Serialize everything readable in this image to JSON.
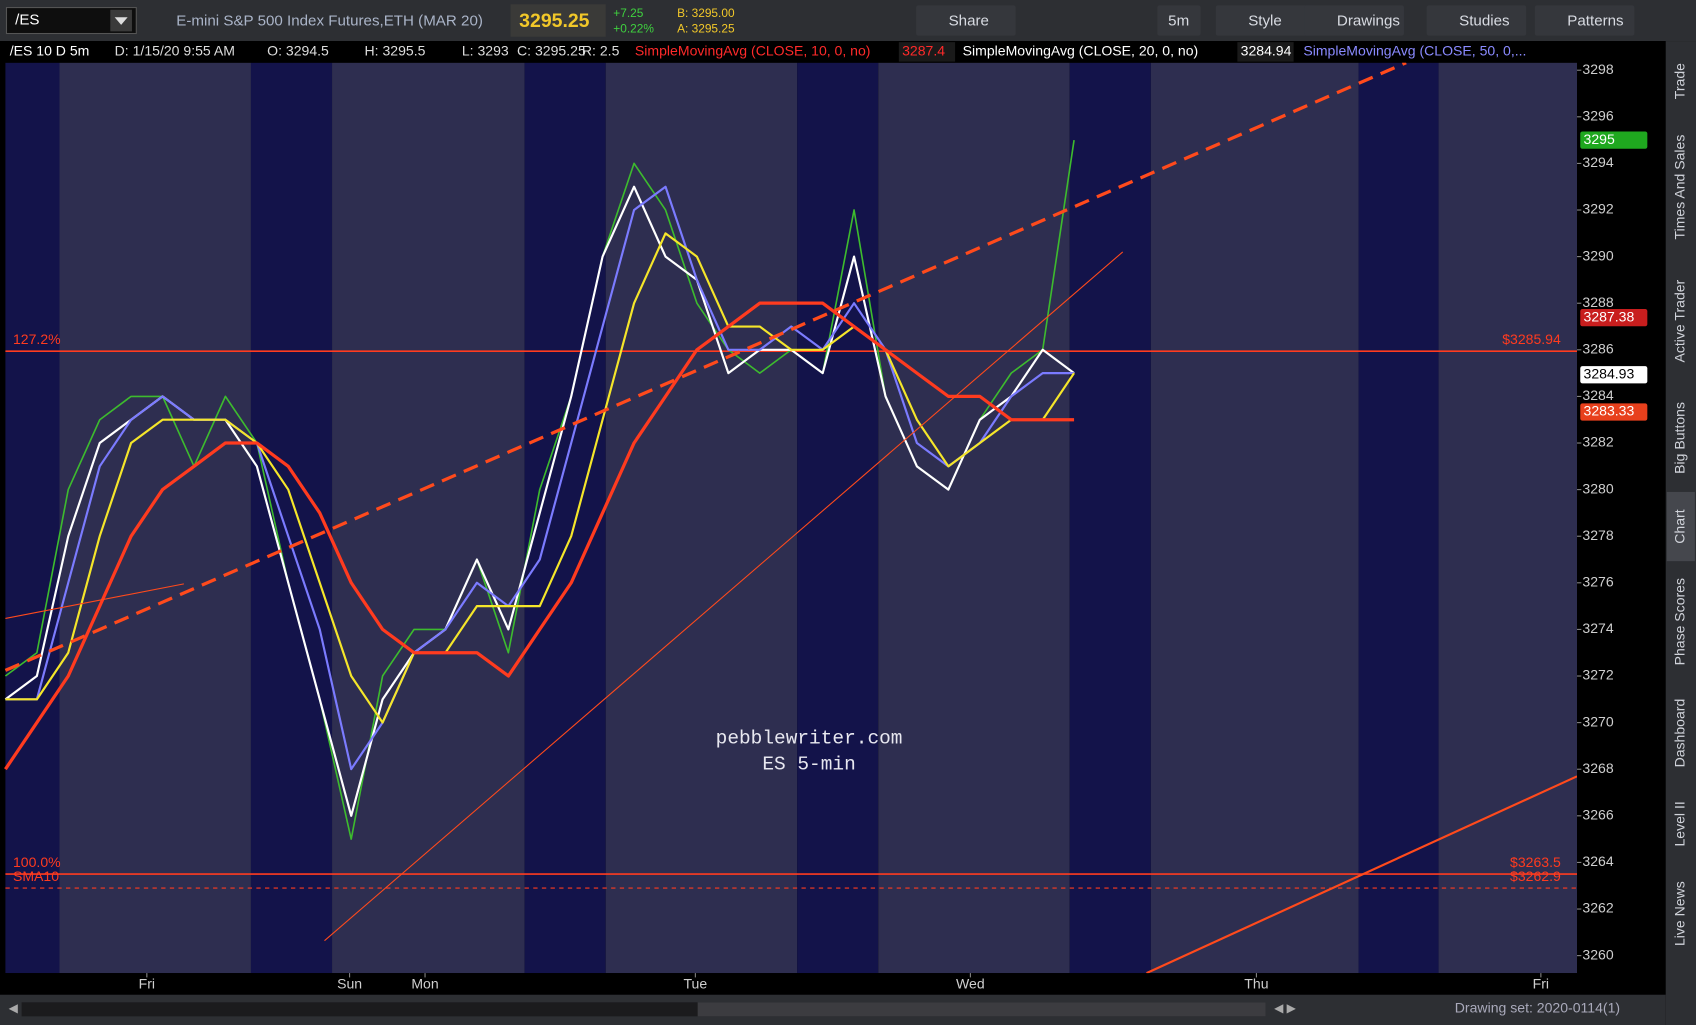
{
  "toolbar": {
    "symbol": "/ES",
    "description": "E-mini S&P 500 Index Futures,ETH (MAR 20)",
    "last": "3295.25",
    "change": "+7.25",
    "change_pct": "+0.22%",
    "bid": "B: 3295.00",
    "ask": "A: 3295.25",
    "buttons": [
      "Share",
      "5m",
      "Style",
      "Drawings",
      "Studies",
      "Patterns"
    ]
  },
  "header": {
    "chart_id": "/ES 10 D 5m",
    "date": "D: 1/15/20 9:55 AM",
    "open": "O: 3294.5",
    "high": "H: 3295.5",
    "low": "L: 3293",
    "close": "C: 3295.25",
    "range": "R: 2.5",
    "studies": [
      {
        "label": "SimpleMovingAvg (CLOSE, 10, 0, no)",
        "value": "3287.4",
        "color": "#ff2a2a"
      },
      {
        "label": "SimpleMovingAvg (CLOSE, 20, 0, no)",
        "value": "3284.94",
        "color": "#ffffff"
      },
      {
        "label": "SimpleMovingAvg (CLOSE, 50, 0,...",
        "color": "#8a8aff"
      }
    ]
  },
  "chart_data": {
    "type": "line",
    "x": [
      0,
      2,
      4,
      6,
      8,
      10,
      12,
      14,
      16,
      18,
      20,
      22,
      24,
      26,
      28,
      30,
      32,
      34,
      36,
      38,
      40,
      42,
      44,
      46,
      48,
      50,
      52,
      54,
      56,
      58,
      60,
      62,
      64,
      66,
      68
    ],
    "series": [
      {
        "color": "#3dbb2e",
        "values": [
          3272,
          3273,
          3280,
          3283,
          3284,
          3284,
          3281,
          3284,
          3282,
          3276,
          3271,
          3265,
          3272,
          3274,
          3274,
          3277,
          3273,
          3280,
          3284,
          3290,
          3294,
          3292,
          3288,
          3286,
          3285,
          3286,
          3285,
          3292,
          3284,
          3281,
          3280,
          3283,
          3285,
          3286,
          3295
        ]
      },
      {
        "color": "#ffffff",
        "values": [
          3271,
          3272,
          3278,
          3282,
          3283,
          3284,
          3283,
          3283,
          3281,
          3276,
          3271,
          3266,
          3271,
          3273,
          3274,
          3277,
          3274,
          3279,
          3284,
          3290,
          3293,
          3290,
          3289,
          3285,
          3286,
          3286,
          3285,
          3290,
          3284,
          3281,
          3280,
          3283,
          3284,
          3286,
          3285
        ]
      },
      {
        "color": "#7b7bff",
        "values": [
          3271,
          3271,
          3276,
          3281,
          3283,
          3284,
          3283,
          3283,
          3282,
          3278,
          3274,
          3268,
          3270,
          3273,
          3274,
          3276,
          3275,
          3277,
          3282,
          3287,
          3292,
          3293,
          3289,
          3286,
          3286,
          3287,
          3286,
          3288,
          3286,
          3282,
          3281,
          3282,
          3284,
          3285,
          3285
        ]
      },
      {
        "color": "#f5e62a",
        "values": [
          3271,
          3271,
          3273,
          3278,
          3282,
          3283,
          3283,
          3283,
          3282,
          3280,
          3276,
          3272,
          3270,
          3273,
          3273,
          3275,
          3275,
          3275,
          3278,
          3283,
          3288,
          3291,
          3290,
          3287,
          3287,
          3286,
          3286,
          3287,
          3286,
          3283,
          3281,
          3282,
          3283,
          3283,
          3285
        ]
      },
      {
        "color": "#ff3b1f",
        "values": [
          3268,
          3270,
          3272,
          3275,
          3278,
          3280,
          3281,
          3282,
          3282,
          3281,
          3279,
          3276,
          3274,
          3273,
          3273,
          3273,
          3272,
          3274,
          3276,
          3279,
          3282,
          3284,
          3286,
          3287,
          3288,
          3288,
          3288,
          3287,
          3286,
          3285,
          3284,
          3284,
          3283,
          3283,
          3283
        ]
      }
    ],
    "xlim": [
      0,
      100
    ],
    "xticks": [
      {
        "value": 9,
        "label": "Fri"
      },
      {
        "value": 21.9,
        "label": "Sun"
      },
      {
        "value": 26.7,
        "label": "Mon"
      },
      {
        "value": 43.9,
        "label": "Tue"
      },
      {
        "value": 61.4,
        "label": "Wed"
      },
      {
        "value": 79.6,
        "label": "Thu"
      },
      {
        "value": 97.7,
        "label": "Fri"
      }
    ],
    "ylim": [
      3259.25,
      3299.25
    ],
    "yticks": [
      3260,
      3262,
      3264,
      3266,
      3268,
      3270,
      3272,
      3274,
      3276,
      3278,
      3280,
      3282,
      3284,
      3286,
      3288,
      3290,
      3292,
      3294,
      3296,
      3298
    ],
    "levels": [
      {
        "value": 3285.94,
        "label": "127.2%",
        "value_label": "$3285.94"
      },
      {
        "value": 3263.5,
        "label": "100.0%",
        "value_label": "$3263.5"
      },
      {
        "value": 3262.9,
        "label": "SMA10",
        "value_label": "$3262.9",
        "dashed": true
      }
    ],
    "price_markers": [
      {
        "value": 3295,
        "color": "#1fa81f",
        "text_color": "#ffffff"
      },
      {
        "value": 3287.38,
        "color": "#c81e1e",
        "text_color": "#ffffff"
      },
      {
        "value": 3284.93,
        "color": "#ffffff",
        "text_color": "#000000"
      },
      {
        "value": 3283.33,
        "color": "#e8401c",
        "text_color": "#ffffff"
      }
    ],
    "watermark": [
      "pebblewriter.com",
      "ES 5-min"
    ]
  },
  "side_tabs": [
    "Trade",
    "Times And Sales",
    "Active Trader",
    "Big Buttons",
    "Chart",
    "Phase Scores",
    "Dashboard",
    "Level II",
    "Live News"
  ],
  "footer": {
    "drawing_set": "Drawing set: 2020-0114(1)"
  }
}
